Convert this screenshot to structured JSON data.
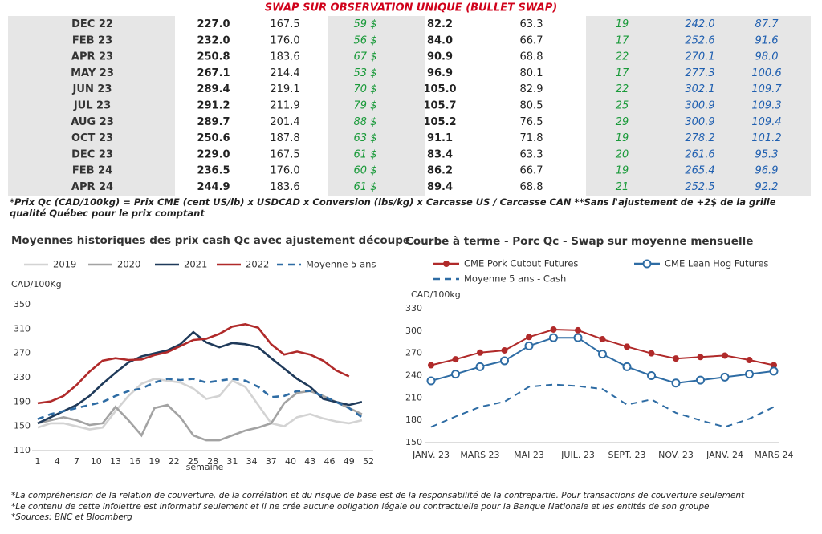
{
  "table": {
    "title": "SWAP SUR OBSERVATION UNIQUE (BULLET SWAP)",
    "rows": [
      [
        "DEC 22",
        "227.0",
        "167.5",
        "59 $",
        "82.2",
        "63.3",
        "19",
        "242.0",
        "87.7"
      ],
      [
        "FEB 23",
        "232.0",
        "176.0",
        "56 $",
        "84.0",
        "66.7",
        "17",
        "252.6",
        "91.6"
      ],
      [
        "APR 23",
        "250.8",
        "183.6",
        "67 $",
        "90.9",
        "68.8",
        "22",
        "270.1",
        "98.0"
      ],
      [
        "MAY 23",
        "267.1",
        "214.4",
        "53 $",
        "96.9",
        "80.1",
        "17",
        "277.3",
        "100.6"
      ],
      [
        "JUN 23",
        "289.4",
        "219.1",
        "70 $",
        "105.0",
        "82.9",
        "22",
        "302.1",
        "109.7"
      ],
      [
        "JUL 23",
        "291.2",
        "211.9",
        "79 $",
        "105.7",
        "80.5",
        "25",
        "300.9",
        "109.3"
      ],
      [
        "AUG 23",
        "289.7",
        "201.4",
        "88 $",
        "105.2",
        "76.5",
        "29",
        "300.9",
        "109.4"
      ],
      [
        "OCT 23",
        "250.6",
        "187.8",
        "63 $",
        "91.1",
        "71.8",
        "19",
        "278.2",
        "101.2"
      ],
      [
        "DEC 23",
        "229.0",
        "167.5",
        "61 $",
        "83.4",
        "63.3",
        "20",
        "261.6",
        "95.3"
      ],
      [
        "FEB 24",
        "236.5",
        "176.0",
        "60 $",
        "86.2",
        "66.7",
        "19",
        "265.4",
        "96.9"
      ],
      [
        "APR 24",
        "244.9",
        "183.6",
        "61 $",
        "89.4",
        "68.8",
        "21",
        "252.5",
        "92.2"
      ]
    ],
    "note": "*Prix Qc (CAD/100kg) = Prix CME (cent US/lb) x USDCAD x Conversion (lbs/kg) x Carcasse US / Carcasse CAN **Sans l'ajustement de +2$ de la grille qualité Québec pour le prix comptant"
  },
  "chart_data": [
    {
      "type": "line",
      "title": "Moyennes historiques des prix cash Qc avec ajustement découpe",
      "y_label": "CAD/100Kg",
      "x_label": "semaine",
      "x": [
        1,
        3,
        5,
        7,
        9,
        11,
        13,
        15,
        17,
        19,
        21,
        23,
        25,
        27,
        29,
        31,
        33,
        35,
        37,
        39,
        41,
        43,
        45,
        47,
        49,
        51
      ],
      "xlim": [
        1,
        52
      ],
      "xticks": [
        1,
        4,
        7,
        10,
        13,
        16,
        19,
        22,
        25,
        28,
        31,
        34,
        37,
        40,
        43,
        46,
        49,
        52
      ],
      "ylim": [
        110,
        350
      ],
      "yticks": [
        110,
        150,
        190,
        230,
        270,
        310,
        350
      ],
      "grid": false,
      "series": [
        {
          "name": "2019",
          "color": "#d3d3d3",
          "dash": false,
          "values": [
            148,
            155,
            155,
            150,
            145,
            148,
            175,
            200,
            220,
            228,
            225,
            222,
            212,
            195,
            200,
            225,
            215,
            185,
            155,
            150,
            165,
            170,
            163,
            158,
            155,
            160
          ]
        },
        {
          "name": "2020",
          "color": "#a3a3a3",
          "dash": false,
          "values": [
            155,
            160,
            165,
            160,
            152,
            155,
            182,
            160,
            135,
            180,
            185,
            165,
            135,
            127,
            127,
            135,
            143,
            148,
            155,
            188,
            205,
            208,
            200,
            190,
            180,
            170
          ]
        },
        {
          "name": "2021",
          "color": "#1f3a5a",
          "dash": false,
          "values": [
            155,
            165,
            175,
            185,
            200,
            220,
            238,
            255,
            265,
            270,
            275,
            285,
            305,
            288,
            280,
            287,
            285,
            280,
            262,
            245,
            228,
            215,
            195,
            190,
            185,
            190
          ]
        },
        {
          "name": "2022",
          "color": "#b02a2a",
          "dash": false,
          "values": [
            188,
            191,
            200,
            218,
            240,
            258,
            262,
            259,
            260,
            267,
            272,
            282,
            292,
            294,
            302,
            314,
            318,
            312,
            285,
            268,
            273,
            268,
            258,
            242,
            232,
            null
          ]
        },
        {
          "name": "Moyenne 5 ans",
          "color": "#2e6ca4",
          "dash": true,
          "values": [
            162,
            170,
            175,
            180,
            185,
            190,
            200,
            208,
            212,
            222,
            228,
            226,
            228,
            222,
            225,
            228,
            225,
            215,
            198,
            200,
            208,
            208,
            200,
            190,
            180,
            165
          ]
        }
      ]
    },
    {
      "type": "line",
      "title": "Courbe à terme - Porc Qc - Swap sur moyenne mensuelle",
      "y_label": "CAD/100kg",
      "categories": [
        "JANV. 23",
        null,
        "MARS 23",
        null,
        "MAI 23",
        null,
        "JUIL. 23",
        null,
        "SEPT. 23",
        null,
        "NOV. 23",
        null,
        "JANV. 24",
        null,
        "MARS 24"
      ],
      "ylim": [
        150,
        330
      ],
      "yticks": [
        150,
        180,
        210,
        240,
        270,
        300,
        330
      ],
      "grid": false,
      "series": [
        {
          "name": "CME Pork Cutout Futures",
          "color": "#b02a2a",
          "dash": false,
          "marker": "filled",
          "values": [
            254,
            262,
            271,
            274,
            292,
            302,
            301,
            289,
            279,
            270,
            263,
            265,
            267,
            261,
            254
          ]
        },
        {
          "name": "CME Lean Hog Futures",
          "color": "#2e6ca4",
          "dash": false,
          "marker": "open",
          "values": [
            233,
            242,
            252,
            260,
            280,
            291,
            291,
            269,
            252,
            240,
            230,
            234,
            238,
            242,
            246
          ]
        },
        {
          "name": "Moyenne 5 ans - Cash",
          "color": "#2e6ca4",
          "dash": true,
          "marker": null,
          "values": [
            171,
            185,
            198,
            205,
            225,
            228,
            226,
            222,
            201,
            208,
            190,
            180,
            171,
            182,
            198
          ]
        }
      ]
    }
  ],
  "footnotes": [
    "*La compréhension de la relation de couverture, de la corrélation et du risque de base est de la responsabilité de la contrepartie. Pour transactions de couverture seulement",
    "*Le contenu de cette infolettre est informatif seulement et il ne crée aucune obligation légale ou contractuelle pour la Banque Nationale et les entités de son groupe",
    "*Sources: BNC et Bloomberg"
  ]
}
